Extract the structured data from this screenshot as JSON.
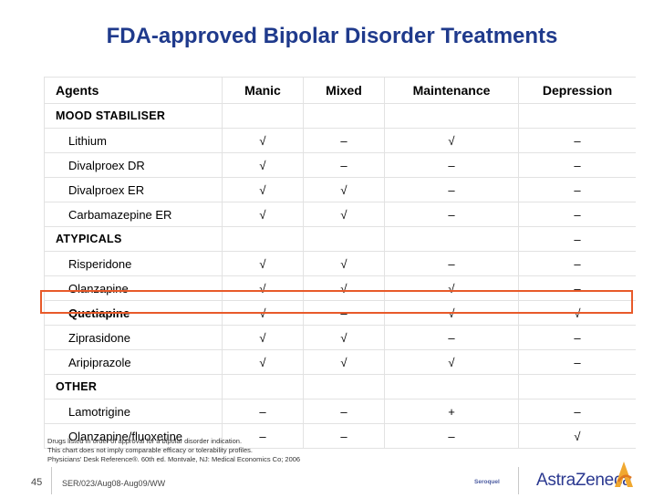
{
  "title": "FDA-approved Bipolar Disorder Treatments",
  "table": {
    "headers": [
      "Agents",
      "Manic",
      "Mixed",
      "Maintenance",
      "Depression"
    ],
    "rows": [
      {
        "type": "group",
        "label": "MOOD STABILISER",
        "values": [
          "",
          "",
          "",
          ""
        ]
      },
      {
        "type": "agent",
        "label": "Lithium",
        "values": [
          "√",
          "–",
          "√",
          "–"
        ]
      },
      {
        "type": "agent",
        "label": "Divalproex DR",
        "values": [
          "√",
          "–",
          "–",
          "–"
        ]
      },
      {
        "type": "agent",
        "label": "Divalproex ER",
        "values": [
          "√",
          "√",
          "–",
          "–"
        ]
      },
      {
        "type": "agent",
        "label": "Carbamazepine ER",
        "values": [
          "√",
          "√",
          "–",
          "–"
        ]
      },
      {
        "type": "group",
        "label": "ATYPICALS",
        "values": [
          "",
          "",
          "",
          "–"
        ]
      },
      {
        "type": "agent",
        "label": "Risperidone",
        "values": [
          "√",
          "√",
          "–",
          "–"
        ]
      },
      {
        "type": "agent",
        "label": "Olanzapine",
        "values": [
          "√",
          "√",
          "√",
          "–"
        ]
      },
      {
        "type": "agent",
        "label": "Quetiapine",
        "highlight": true,
        "values": [
          "√",
          "–",
          "√",
          "√"
        ]
      },
      {
        "type": "agent",
        "label": "Ziprasidone",
        "values": [
          "√",
          "√",
          "–",
          "–"
        ]
      },
      {
        "type": "agent",
        "label": "Aripiprazole",
        "values": [
          "√",
          "√",
          "√",
          "–"
        ]
      },
      {
        "type": "group",
        "label": "OTHER",
        "values": [
          "",
          "",
          "",
          ""
        ]
      },
      {
        "type": "agent",
        "label": "Lamotrigine",
        "values": [
          "–",
          "–",
          "+",
          "–"
        ]
      },
      {
        "type": "agent",
        "label": "Olanzapine/fluoxetine",
        "values": [
          "–",
          "–",
          "–",
          "√"
        ]
      }
    ]
  },
  "notes": {
    "line1": "Drugs listed in order of approval for a bipolar disorder indication.",
    "line2": "This chart does not imply comparable efficacy or tolerability profiles.",
    "line3": "Physicians' Desk Reference®. 60th ed. Montvale, NJ: Medical Economics Co; 2006"
  },
  "footer": {
    "slide_number": "45",
    "code": "SER/023/Aug08-Aug09/WW",
    "brand_logo": "Seroquel",
    "company_logo": "AstraZeneca"
  },
  "colors": {
    "title": "#1f3a8c",
    "highlight_border": "#e85a2a",
    "logo": "#2b3990"
  }
}
